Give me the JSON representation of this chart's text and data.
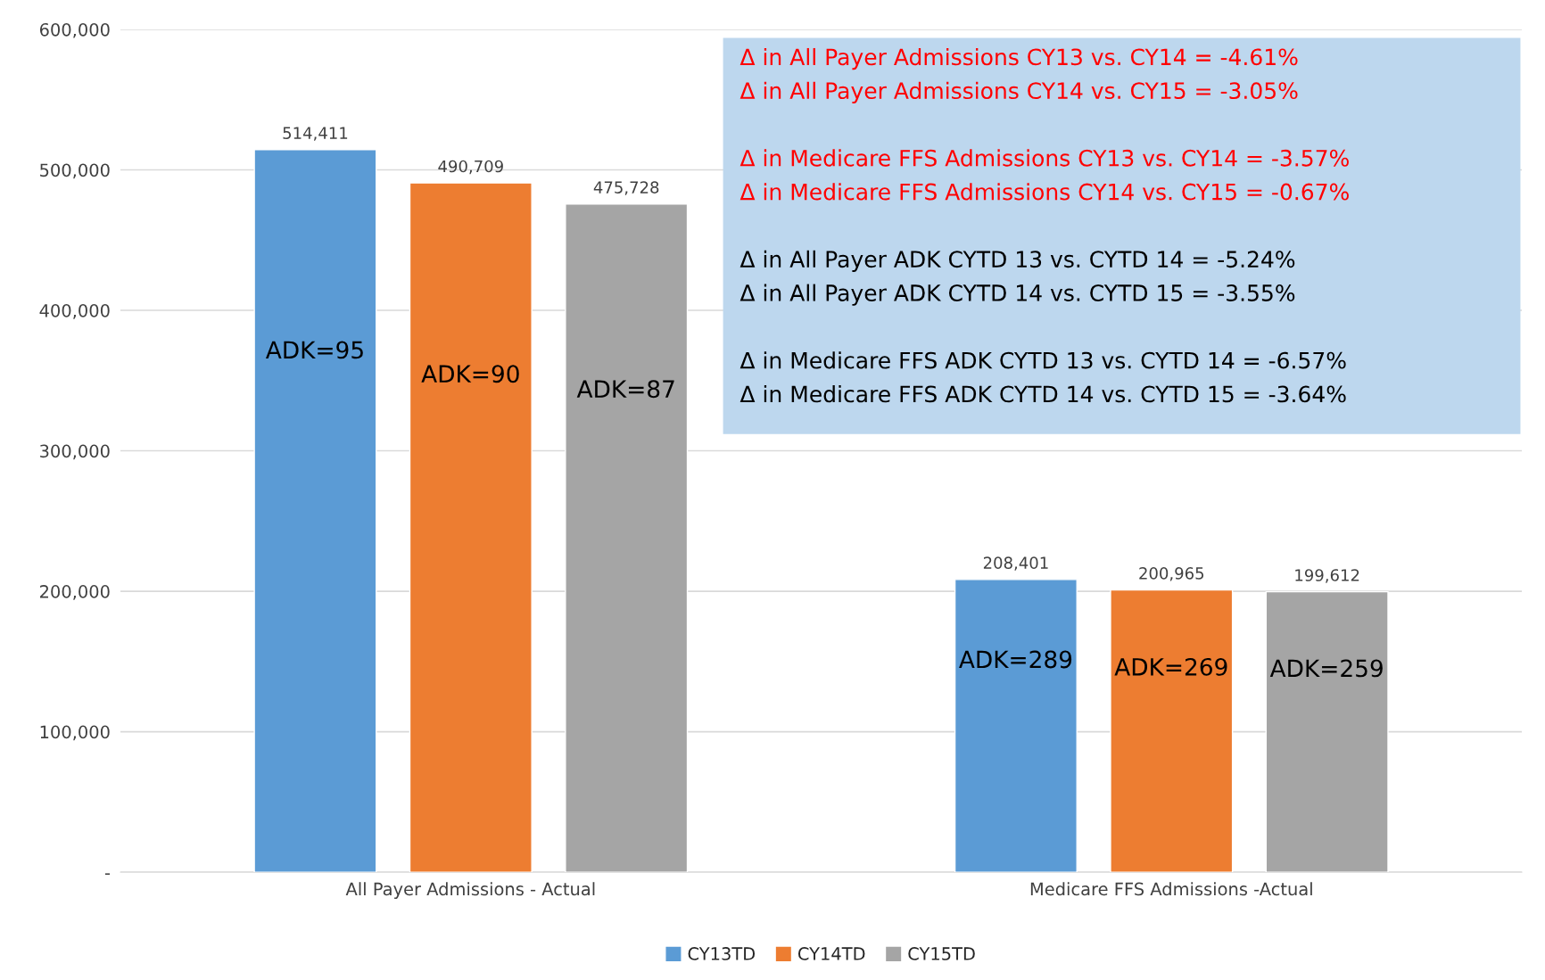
{
  "chart_data": {
    "type": "bar",
    "categories": [
      "All Payer Admissions - Actual",
      "Medicare FFS Admissions -Actual"
    ],
    "series": [
      {
        "name": "CY13TD",
        "color": "#5b9bd5",
        "values": [
          514411,
          208401
        ],
        "value_labels": [
          "514,411",
          "208,401"
        ]
      },
      {
        "name": "CY14TD",
        "color": "#ed7d31",
        "values": [
          490709,
          200965
        ],
        "value_labels": [
          "490,709",
          "200,965"
        ]
      },
      {
        "name": "CY15TD",
        "color": "#a5a5a5",
        "values": [
          475728,
          199612
        ],
        "value_labels": [
          "475,728",
          "199,612"
        ]
      }
    ],
    "ylim": [
      0,
      600000
    ],
    "yticks": [
      {
        "value": 0,
        "label": "-"
      },
      {
        "value": 100000,
        "label": "100,000"
      },
      {
        "value": 200000,
        "label": "200,000"
      },
      {
        "value": 300000,
        "label": "300,000"
      },
      {
        "value": 400000,
        "label": "400,000"
      },
      {
        "value": 500000,
        "label": "500,000"
      },
      {
        "value": 600000,
        "label": "600,000"
      }
    ],
    "grid": "y",
    "legend": "bottom",
    "annotations": [
      "ADK=95",
      "ADK=289",
      "ADK=90",
      "ADK=269",
      "ADK=87",
      "ADK=259",
      "Δ in All Payer Admissions CY13 vs. CY14 = -4.61%",
      "Δ in All Payer Admissions CY14 vs. CY15 = -3.05%",
      "Δ in Medicare FFS Admissions CY13 vs. CY14 = -3.57%",
      "Δ in Medicare FFS Admissions CY14 vs. CY15 = -0.67%",
      "Δ in All Payer ADK CYTD 13 vs. CYTD 14 = -5.24%",
      "Δ in All Payer ADK CYTD 14 vs. CYTD 15 = -3.55%",
      "Δ in Medicare FFS ADK CYTD 13 vs. CYTD 14 = -6.57%",
      "Δ in Medicare FFS ADK CYTD 14 vs. CYTD 15 = -3.64%"
    ]
  }
}
